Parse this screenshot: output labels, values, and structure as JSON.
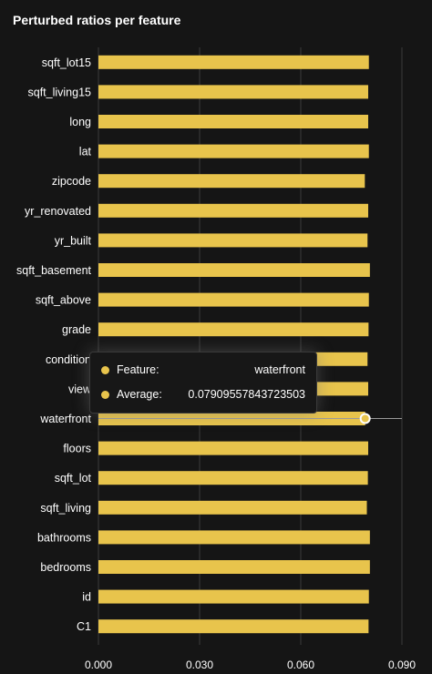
{
  "title": "Perturbed ratios per feature",
  "chart_data": {
    "type": "bar",
    "orientation": "horizontal",
    "title": "Perturbed ratios per feature",
    "categories": [
      "sqft_lot15",
      "sqft_living15",
      "long",
      "lat",
      "zipcode",
      "yr_renovated",
      "yr_built",
      "sqft_basement",
      "sqft_above",
      "grade",
      "condition",
      "view",
      "waterfront",
      "floors",
      "sqft_lot",
      "sqft_living",
      "bathrooms",
      "bedrooms",
      "id",
      "C1"
    ],
    "values": [
      0.0802,
      0.08,
      0.08,
      0.0802,
      0.079,
      0.08,
      0.0798,
      0.0805,
      0.0802,
      0.0801,
      0.0798,
      0.08,
      0.0791,
      0.08,
      0.0799,
      0.0796,
      0.0805,
      0.0805,
      0.0802,
      0.0801
    ],
    "xlim": [
      0,
      0.09
    ],
    "x_ticks": [
      "0.000",
      "0.030",
      "0.060",
      "0.090"
    ],
    "x_tick_values": [
      0,
      0.03,
      0.06,
      0.09
    ],
    "grid": "vertical",
    "bar_color": "#e8c44c",
    "background": "#151515",
    "legend": "none"
  },
  "tooltip": {
    "category": "waterfront",
    "feature_label": "Feature:",
    "feature_value": "waterfront",
    "average_label": "Average:",
    "average_value": "0.07909557843723503"
  }
}
